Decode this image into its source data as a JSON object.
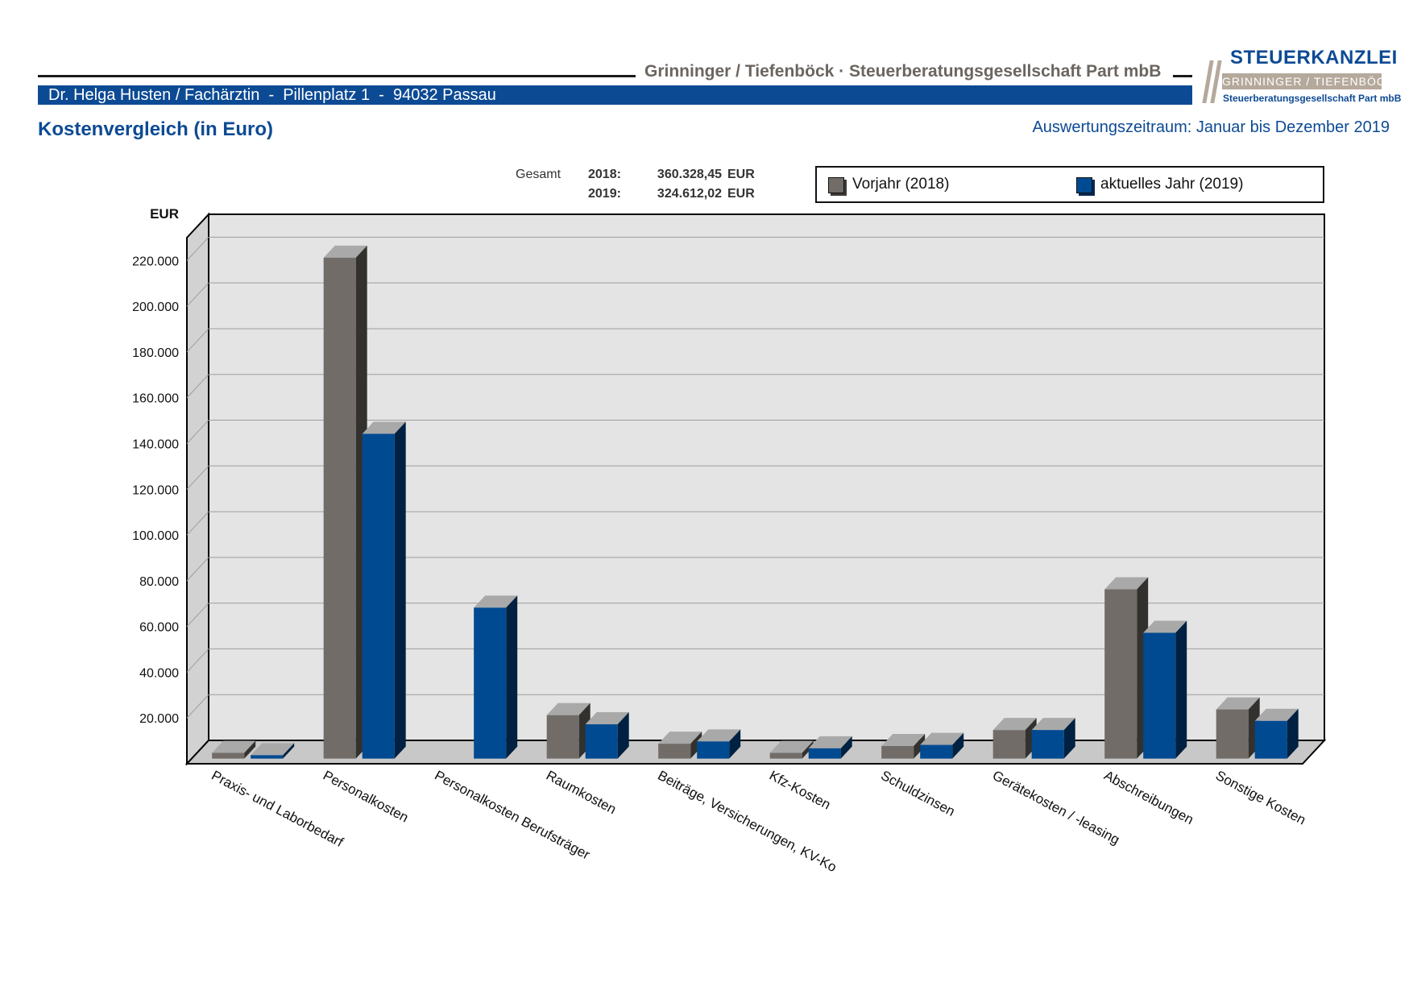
{
  "header": {
    "firm_name": "Grinninger / Tiefenböck · Steuerberatungsgesellschaft Part mbB",
    "client_line": "Dr. Helga Husten / Fachärztin  -  Pillenplatz 1  -  94032 Passau",
    "logo": {
      "title": "STEUERKANZLEI",
      "band": "GRINNINGER / TIEFENBÖCK",
      "subtitle": "Steuerberatungsgesellschaft Part mbB"
    }
  },
  "page_title": "Kostenvergleich (in Euro)",
  "period": "Auswertungszeitraum: Januar bis Dezember 2019",
  "totals": {
    "label": "Gesamt",
    "rows": [
      {
        "year": "2018:",
        "amount": "360.328,45",
        "unit": "EUR"
      },
      {
        "year": "2019:",
        "amount": "324.612,02",
        "unit": "EUR"
      }
    ]
  },
  "colors": {
    "brand_blue": "#0d4a94",
    "prior_year": "#716c67",
    "current_year": "#004a91",
    "plot_back": "#e4e4e4",
    "plot_side": "#d2d2d2"
  },
  "chart_data": {
    "type": "bar",
    "style": "3d-grouped",
    "ylabel": "EUR",
    "ylim": [
      0,
      230000
    ],
    "yticks": [
      20000,
      40000,
      60000,
      80000,
      100000,
      120000,
      140000,
      160000,
      180000,
      200000,
      220000
    ],
    "ytick_labels": [
      "20.000",
      "40.000",
      "60.000",
      "80.000",
      "100.000",
      "120.000",
      "140.000",
      "160.000",
      "180.000",
      "200.000",
      "220.000"
    ],
    "grid": true,
    "legend_position": "top-right",
    "categories": [
      "Praxis- und Laborbedarf",
      "Personalkosten",
      "Personalkosten Berufsträger",
      "Raumkosten",
      "Beiträge, Versicherungen, KV-Ko",
      "Kfz-Kosten",
      "Schuldzinsen",
      "Gerätekosten / -leasing",
      "Abschreibungen",
      "Sonstige Kosten"
    ],
    "series": [
      {
        "name": "Vorjahr (2018)",
        "color": "#716c67",
        "values": [
          2500,
          219000,
          0,
          19000,
          6500,
          2500,
          5500,
          12500,
          74000,
          21500
        ]
      },
      {
        "name": "aktuelles Jahr (2019)",
        "color": "#004a91",
        "values": [
          1500,
          142000,
          66000,
          15000,
          7500,
          4500,
          6000,
          12500,
          55000,
          16500
        ]
      }
    ]
  }
}
